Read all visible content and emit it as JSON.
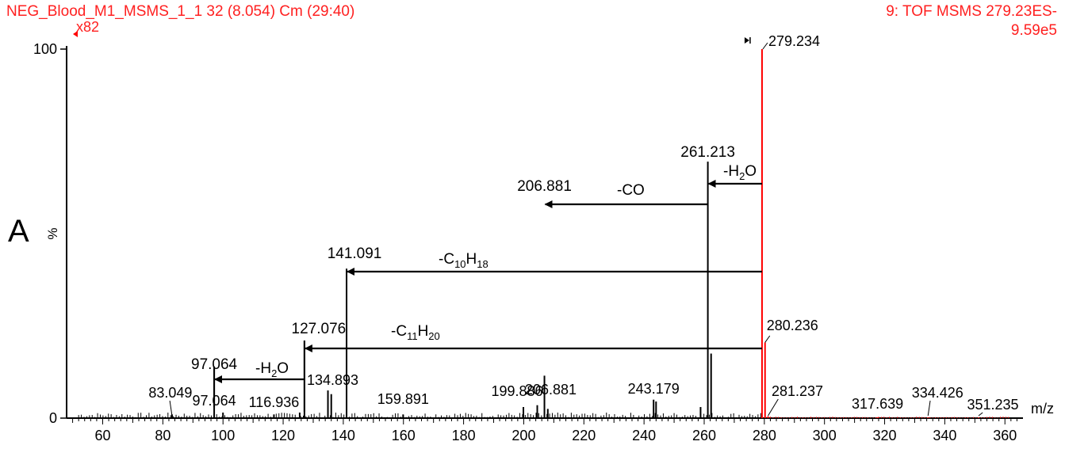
{
  "panel_letter": "A",
  "header": {
    "left_title": "NEG_Blood_M1_MSMS_1_1 32 (8.054) Cm (29:40)",
    "magnification": "x82",
    "right_title_line1": "9: TOF MSMS 279.23ES-",
    "right_title_line2": "9.59e5"
  },
  "colors": {
    "spectrum": "#000000",
    "precursor": "#ff0000",
    "header_text": "#ff2020",
    "arrows": "#000000"
  },
  "chart_data": {
    "type": "bar",
    "subtype": "mass-spectrum-stick",
    "xlabel": "m/z",
    "ylabel": "%",
    "xlim": [
      48,
      366
    ],
    "ylim": [
      0,
      100
    ],
    "x_ticks": [
      "60",
      "80",
      "100",
      "120",
      "140",
      "160",
      "180",
      "200",
      "220",
      "240",
      "260",
      "280",
      "300",
      "320",
      "340",
      "360"
    ],
    "y_ticks": [
      "0",
      "100"
    ],
    "magnified_region": {
      "symbol": "x82",
      "from_mz": 48,
      "to_mz": 279.234
    },
    "peaks": [
      {
        "mz": 83.049,
        "intensity": 1.0,
        "label": "83.049"
      },
      {
        "mz": 97.064,
        "intensity": 14.0,
        "label": "97.064",
        "label2": "97.064"
      },
      {
        "mz": 100.0,
        "intensity": 1.5
      },
      {
        "mz": 116.936,
        "intensity": 1.0,
        "label": "116.936"
      },
      {
        "mz": 125.5,
        "intensity": 1.5
      },
      {
        "mz": 127.076,
        "intensity": 21.0,
        "label": "127.076"
      },
      {
        "mz": 134.893,
        "intensity": 7.5,
        "label": "134.893"
      },
      {
        "mz": 136.0,
        "intensity": 6.5
      },
      {
        "mz": 141.091,
        "intensity": 40.5,
        "label": "141.091"
      },
      {
        "mz": 159.891,
        "intensity": 1.0,
        "label": "159.891"
      },
      {
        "mz": 199.886,
        "intensity": 3.0,
        "label": "199.886"
      },
      {
        "mz": 204.5,
        "intensity": 3.5
      },
      {
        "mz": 206.881,
        "intensity": 11.5,
        "label": "206.881",
        "label2": "206.881"
      },
      {
        "mz": 208.0,
        "intensity": 2.5
      },
      {
        "mz": 243.179,
        "intensity": 5.0,
        "label": "243.179"
      },
      {
        "mz": 244.0,
        "intensity": 4.5
      },
      {
        "mz": 258.8,
        "intensity": 3.0
      },
      {
        "mz": 261.213,
        "intensity": 69.5,
        "label": "261.213"
      },
      {
        "mz": 262.3,
        "intensity": 17.5
      },
      {
        "mz": 279.234,
        "intensity": 100.0,
        "label": "279.234",
        "precursor": true
      },
      {
        "mz": 280.236,
        "intensity": 20.5,
        "label": "280.236",
        "precursor": true
      },
      {
        "mz": 281.237,
        "intensity": 0.5,
        "label": "281.237",
        "precursor": true
      },
      {
        "mz": 317.639,
        "intensity": 0.2,
        "label": "317.639",
        "precursor": true
      },
      {
        "mz": 334.426,
        "intensity": 0.2,
        "label": "334.426",
        "precursor": true
      },
      {
        "mz": 351.235,
        "intensity": 0.2,
        "label": "351.235",
        "precursor": true
      }
    ],
    "neutral_losses": [
      {
        "from_mz": 279.234,
        "to_mz": 261.213,
        "loss": "H2O",
        "label_base": "-H",
        "label_sub": "2",
        "label_tail": "O"
      },
      {
        "from_mz": 261.213,
        "to_mz": 206.881,
        "loss": "CO",
        "label_base": "-CO",
        "label_sub": "",
        "label_tail": ""
      },
      {
        "from_mz": 279.234,
        "to_mz": 141.091,
        "loss": "C10H18",
        "label_base": "-C",
        "label_sub": "10",
        "label_tail": "H",
        "label_sub2": "18"
      },
      {
        "from_mz": 279.234,
        "to_mz": 127.076,
        "loss": "C11H20",
        "label_base": "-C",
        "label_sub": "11",
        "label_tail": "H",
        "label_sub2": "20"
      },
      {
        "from_mz": 127.076,
        "to_mz": 97.064,
        "loss": "H2O",
        "label_base": "-H",
        "label_sub": "2",
        "label_tail": "O"
      }
    ]
  }
}
